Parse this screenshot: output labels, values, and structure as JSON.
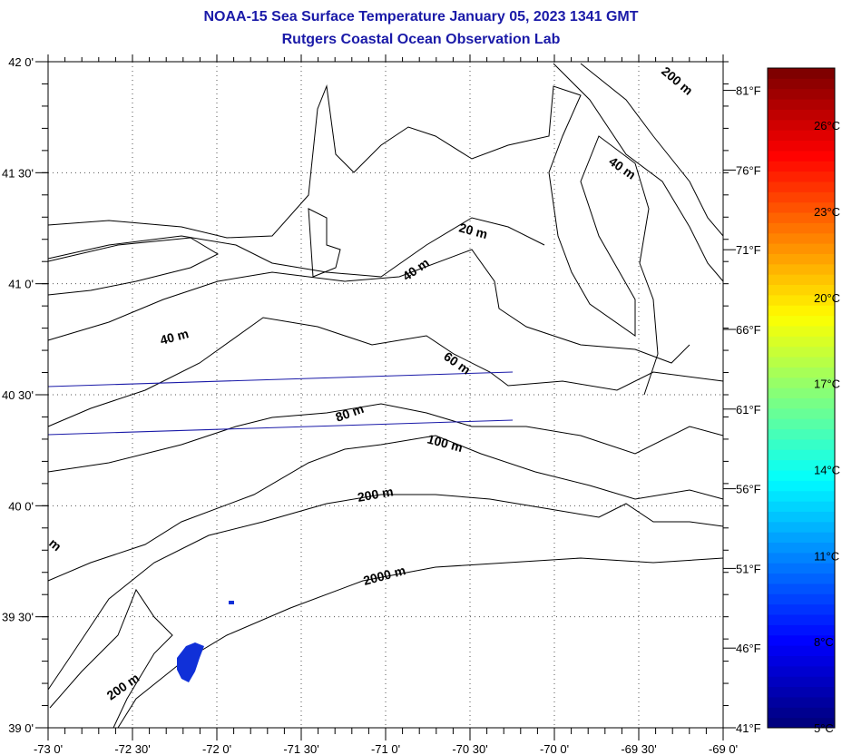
{
  "title": {
    "line1": "NOAA-15 Sea Surface Temperature January 05, 2023 1341 GMT",
    "line2": "Rutgers Coastal Ocean Observation Lab"
  },
  "map": {
    "lon_range": [
      -73,
      -69
    ],
    "lat_range": [
      39,
      42
    ],
    "lon_ticks": [
      "-73 0'",
      "-72 30'",
      "-72 0'",
      "-71 30'",
      "-71 0'",
      "-70 30'",
      "-70 0'",
      "-69 30'",
      "-69 0'"
    ],
    "lat_ticks": [
      "39 0'",
      "39 30'",
      "40 0'",
      "40 30'",
      "41 0'",
      "41 30'",
      "42 0'"
    ],
    "fahrenheit_ticks": [
      "41°F",
      "46°F",
      "51°F",
      "56°F",
      "61°F",
      "66°F",
      "71°F",
      "76°F",
      "81°F"
    ],
    "contour_labels": [
      "200 m",
      "40 m",
      "20 m",
      "40 m",
      "40 m",
      "60 m",
      "80 m",
      "100 m",
      "200 m",
      "2000 m",
      "200 m",
      "m"
    ],
    "colors": {
      "title": "#1a1aa8",
      "track": "#1a1aa8",
      "sst_pixel": "#1030d8"
    }
  },
  "colorbar": {
    "celsius_ticks": [
      "5°C",
      "8°C",
      "11°C",
      "14°C",
      "17°C",
      "20°C",
      "23°C",
      "26°C"
    ],
    "range_c": [
      5,
      28
    ]
  }
}
